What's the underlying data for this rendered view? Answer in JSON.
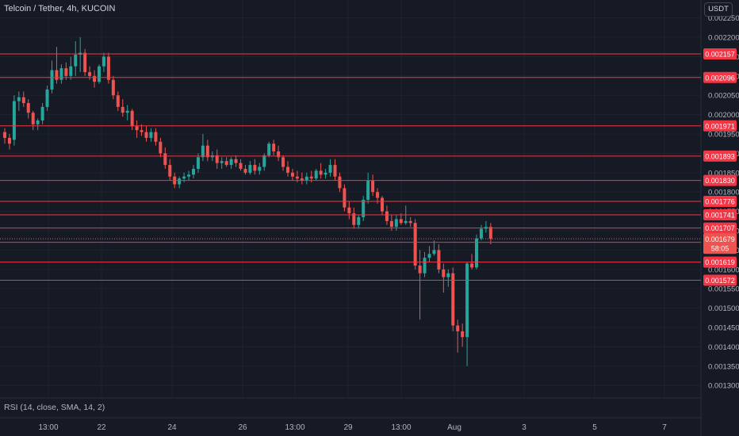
{
  "header": {
    "title": "Telcoin / Tether, 4h, KUCOIN",
    "currency_button": "USDT"
  },
  "indicator": {
    "label": "RSI (14, close, SMA, 14, 2)"
  },
  "colors": {
    "background": "#161a25",
    "up": "#26a69a",
    "down": "#ef5350",
    "level_line": "#f23645",
    "axis_text": "#b2b5be"
  },
  "countdown": "58:05",
  "chart_data": {
    "type": "candlestick",
    "ylim": [
      0.00128,
      0.00228
    ],
    "y_ticks": [
      "0.002250",
      "0.002200",
      "0.002150",
      "0.002100",
      "0.002050",
      "0.002000",
      "0.001950",
      "0.001900",
      "0.001850",
      "0.001800",
      "0.001750",
      "0.001700",
      "0.001650",
      "0.001600",
      "0.001550",
      "0.001500",
      "0.001450",
      "0.001400",
      "0.001350",
      "0.001300"
    ],
    "x_ticks": [
      "13:00",
      "22",
      "24",
      "26",
      "13:00",
      "29",
      "13:00",
      "Aug",
      "3",
      "5",
      "7"
    ],
    "level_lines": [
      "0.002157",
      "0.002096",
      "0.001971",
      "0.001893",
      "0.001830",
      "0.001776",
      "0.001741",
      "0.001707",
      "0.001670",
      "0.001619",
      "0.001572"
    ],
    "current_price": "0.001679",
    "candles": [
      [
        0.001955,
        0.001965,
        0.001925,
        0.00194
      ],
      [
        0.00194,
        0.00195,
        0.00191,
        0.001925
      ],
      [
        0.001935,
        0.00205,
        0.00192,
        0.002035
      ],
      [
        0.002035,
        0.00206,
        0.00201,
        0.002045
      ],
      [
        0.002045,
        0.00206,
        0.00202,
        0.00203
      ],
      [
        0.00203,
        0.00204,
        0.00199,
        0.002005
      ],
      [
        0.002005,
        0.00201,
        0.00196,
        0.001975
      ],
      [
        0.001975,
        0.00199,
        0.00196,
        0.001985
      ],
      [
        0.001985,
        0.00203,
        0.001975,
        0.00202
      ],
      [
        0.00202,
        0.002075,
        0.00201,
        0.002065
      ],
      [
        0.002065,
        0.00214,
        0.002055,
        0.002115
      ],
      [
        0.002115,
        0.002175,
        0.00208,
        0.00209
      ],
      [
        0.00209,
        0.00213,
        0.00208,
        0.00212
      ],
      [
        0.00212,
        0.002135,
        0.00209,
        0.0021
      ],
      [
        0.0021,
        0.00215,
        0.00209,
        0.002125
      ],
      [
        0.002125,
        0.00219,
        0.0021,
        0.002155
      ],
      [
        0.002155,
        0.0022,
        0.00211,
        0.00216
      ],
      [
        0.00216,
        0.00217,
        0.0021,
        0.00211
      ],
      [
        0.00211,
        0.002125,
        0.00209,
        0.0021
      ],
      [
        0.0021,
        0.002115,
        0.00207,
        0.002085
      ],
      [
        0.002085,
        0.00213,
        0.00208,
        0.002125
      ],
      [
        0.002125,
        0.00216,
        0.00211,
        0.00215
      ],
      [
        0.00215,
        0.00216,
        0.00208,
        0.00209
      ],
      [
        0.00209,
        0.0021,
        0.00204,
        0.00205
      ],
      [
        0.00205,
        0.00206,
        0.00201,
        0.00202
      ],
      [
        0.00202,
        0.00204,
        0.001995,
        0.002005
      ],
      [
        0.002005,
        0.002025,
        0.001985,
        0.00201
      ],
      [
        0.00201,
        0.002015,
        0.00196,
        0.00197
      ],
      [
        0.00197,
        0.001985,
        0.00194,
        0.00196
      ],
      [
        0.00196,
        0.001975,
        0.001945,
        0.001955
      ],
      [
        0.001955,
        0.00197,
        0.00193,
        0.00194
      ],
      [
        0.00194,
        0.001965,
        0.00193,
        0.001955
      ],
      [
        0.001955,
        0.001965,
        0.00192,
        0.00193
      ],
      [
        0.00193,
        0.00194,
        0.00189,
        0.0019
      ],
      [
        0.0019,
        0.001915,
        0.00186,
        0.00187
      ],
      [
        0.00187,
        0.001885,
        0.00183,
        0.00184
      ],
      [
        0.00184,
        0.00185,
        0.00181,
        0.00182
      ],
      [
        0.00182,
        0.00184,
        0.00181,
        0.001835
      ],
      [
        0.001835,
        0.00185,
        0.001825,
        0.00184
      ],
      [
        0.00184,
        0.001855,
        0.00183,
        0.001845
      ],
      [
        0.001845,
        0.00187,
        0.001835,
        0.00186
      ],
      [
        0.00186,
        0.0019,
        0.00185,
        0.00189
      ],
      [
        0.00189,
        0.00195,
        0.00188,
        0.00192
      ],
      [
        0.00192,
        0.001935,
        0.00188,
        0.00189
      ],
      [
        0.00189,
        0.001905,
        0.00188,
        0.001895
      ],
      [
        0.001895,
        0.00191,
        0.00186,
        0.001875
      ],
      [
        0.001875,
        0.00189,
        0.00186,
        0.00188
      ],
      [
        0.00188,
        0.00189,
        0.001865,
        0.00187
      ],
      [
        0.00187,
        0.00189,
        0.00186,
        0.001885
      ],
      [
        0.001885,
        0.001895,
        0.001865,
        0.001875
      ],
      [
        0.001875,
        0.001885,
        0.001855,
        0.00186
      ],
      [
        0.00186,
        0.00187,
        0.001845,
        0.00185
      ],
      [
        0.00185,
        0.00188,
        0.001845,
        0.00187
      ],
      [
        0.00187,
        0.001885,
        0.001845,
        0.001855
      ],
      [
        0.001855,
        0.001875,
        0.001845,
        0.001865
      ],
      [
        0.001865,
        0.0019,
        0.001855,
        0.001895
      ],
      [
        0.001895,
        0.00193,
        0.00189,
        0.001925
      ],
      [
        0.001925,
        0.001935,
        0.001895,
        0.001905
      ],
      [
        0.001905,
        0.00192,
        0.00188,
        0.00189
      ],
      [
        0.00189,
        0.001895,
        0.001855,
        0.001865
      ],
      [
        0.001865,
        0.00188,
        0.00184,
        0.00185
      ],
      [
        0.00185,
        0.00186,
        0.00183,
        0.00184
      ],
      [
        0.00184,
        0.001855,
        0.001825,
        0.001835
      ],
      [
        0.001835,
        0.00185,
        0.00182,
        0.00183
      ],
      [
        0.00183,
        0.00185,
        0.00182,
        0.00184
      ],
      [
        0.00184,
        0.001855,
        0.001825,
        0.001835
      ],
      [
        0.001835,
        0.00186,
        0.00183,
        0.001855
      ],
      [
        0.001855,
        0.001875,
        0.001835,
        0.001845
      ],
      [
        0.001845,
        0.00186,
        0.001835,
        0.00185
      ],
      [
        0.00185,
        0.001885,
        0.00184,
        0.00187
      ],
      [
        0.00187,
        0.001885,
        0.00183,
        0.00184
      ],
      [
        0.00184,
        0.00185,
        0.0018,
        0.00181
      ],
      [
        0.00181,
        0.00182,
        0.00175,
        0.00176
      ],
      [
        0.00176,
        0.001775,
        0.00173,
        0.001745
      ],
      [
        0.001745,
        0.00176,
        0.001705,
        0.001715
      ],
      [
        0.001715,
        0.00174,
        0.001705,
        0.001735
      ],
      [
        0.001735,
        0.00179,
        0.001725,
        0.00178
      ],
      [
        0.00178,
        0.00185,
        0.00177,
        0.00183
      ],
      [
        0.00183,
        0.001845,
        0.00179,
        0.0018
      ],
      [
        0.0018,
        0.00181,
        0.00177,
        0.001785
      ],
      [
        0.001785,
        0.00179,
        0.00174,
        0.00175
      ],
      [
        0.00175,
        0.001765,
        0.001715,
        0.001725
      ],
      [
        0.001725,
        0.00174,
        0.0017,
        0.00171
      ],
      [
        0.00171,
        0.00174,
        0.0017,
        0.00173
      ],
      [
        0.00173,
        0.001745,
        0.001715,
        0.00172
      ],
      [
        0.00172,
        0.001765,
        0.001715,
        0.001725
      ],
      [
        0.001725,
        0.001735,
        0.00171,
        0.00172
      ],
      [
        0.00172,
        0.00173,
        0.0016,
        0.00161
      ],
      [
        0.00161,
        0.00165,
        0.00147,
        0.00159
      ],
      [
        0.00159,
        0.001645,
        0.00158,
        0.00163
      ],
      [
        0.00163,
        0.00166,
        0.00162,
        0.00164
      ],
      [
        0.00164,
        0.001675,
        0.001635,
        0.00165
      ],
      [
        0.00165,
        0.001665,
        0.00159,
        0.0016
      ],
      [
        0.0016,
        0.001615,
        0.00154,
        0.00158
      ],
      [
        0.00158,
        0.0016,
        0.001555,
        0.00159
      ],
      [
        0.00159,
        0.001605,
        0.00144,
        0.001455
      ],
      [
        0.001455,
        0.00147,
        0.001385,
        0.00144
      ],
      [
        0.00144,
        0.00146,
        0.0014,
        0.001425
      ],
      [
        0.001425,
        0.00162,
        0.00135,
        0.001615
      ],
      [
        0.001615,
        0.00164,
        0.0016,
        0.001605
      ],
      [
        0.001605,
        0.00169,
        0.0016,
        0.00168
      ],
      [
        0.00168,
        0.001715,
        0.001675,
        0.001705
      ],
      [
        0.001705,
        0.001725,
        0.001695,
        0.00171
      ],
      [
        0.00171,
        0.00172,
        0.001665,
        0.001679
      ]
    ]
  }
}
